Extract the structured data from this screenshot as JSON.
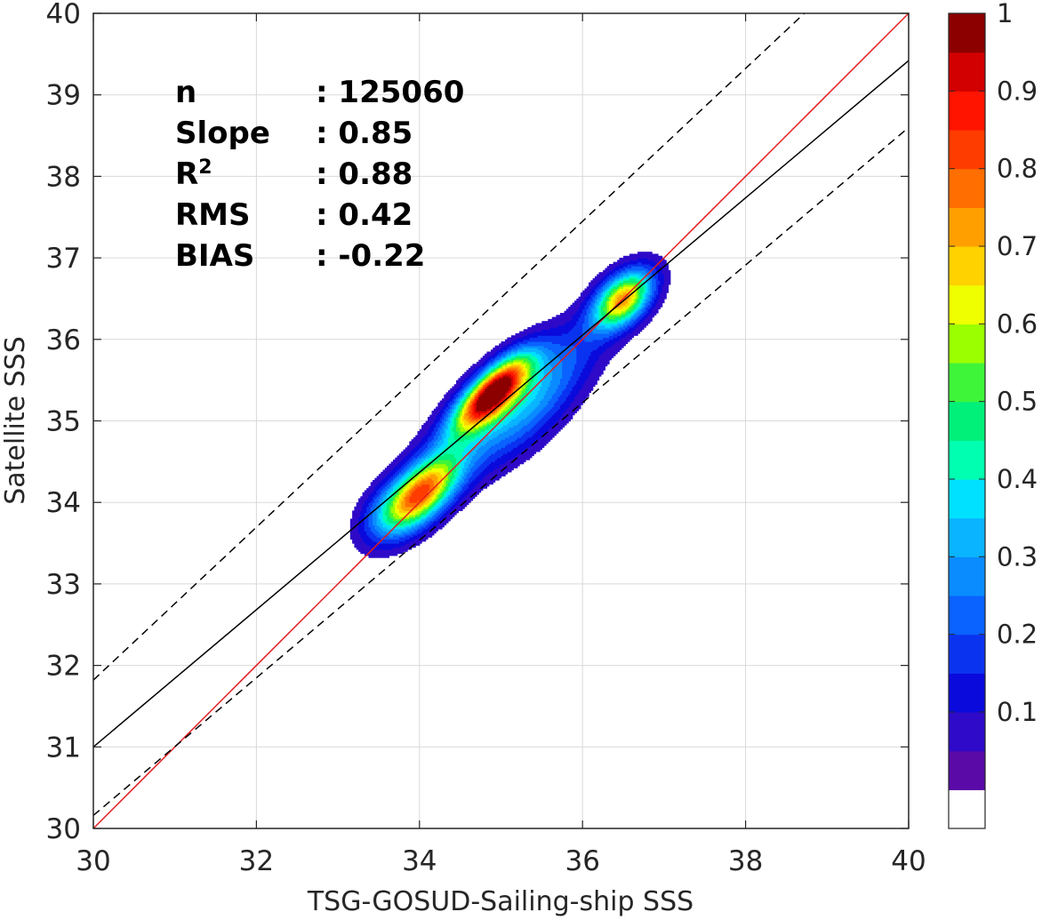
{
  "chart_data": {
    "type": "contour_density_scatter",
    "xlabel": "TSG-GOSUD-Sailing-ship SSS",
    "ylabel": "Satellite SSS",
    "xlim": [
      30,
      40
    ],
    "ylim": [
      30,
      40
    ],
    "xticks": [
      30,
      32,
      34,
      36,
      38,
      40
    ],
    "yticks": [
      30,
      31,
      32,
      33,
      34,
      35,
      36,
      37,
      38,
      39,
      40
    ],
    "grid": true,
    "stats": [
      {
        "label": "n",
        "value": ": 125060"
      },
      {
        "label": "Slope",
        "value": ": 0.85"
      },
      {
        "label": "R",
        "sup": "2",
        "value": ": 0.88"
      },
      {
        "label": "RMS",
        "value": ": 0.42"
      },
      {
        "label": "BIAS",
        "value": ": -0.22"
      }
    ],
    "lines": [
      {
        "kind": "one_to_one",
        "color": "#e31a1c",
        "style": "solid",
        "points": [
          [
            30,
            30
          ],
          [
            40,
            40
          ]
        ]
      },
      {
        "kind": "regression_fit",
        "color": "#000000",
        "style": "solid",
        "points": [
          [
            30,
            31.0
          ],
          [
            40,
            39.42
          ]
        ]
      },
      {
        "kind": "upper_bound",
        "color": "#000000",
        "style": "dashed",
        "points": [
          [
            30,
            31.82
          ],
          [
            40,
            41.2
          ]
        ]
      },
      {
        "kind": "lower_bound",
        "color": "#000000",
        "style": "dashed",
        "points": [
          [
            30,
            30.16
          ],
          [
            40,
            38.6
          ]
        ]
      }
    ],
    "density_peaks": [
      {
        "x": 34.0,
        "y": 34.1,
        "peak": 0.75
      },
      {
        "x": 34.9,
        "y": 35.35,
        "peak": 0.98
      },
      {
        "x": 36.5,
        "y": 36.5,
        "peak": 0.68
      }
    ],
    "colorbar": {
      "ticks": [
        "0.1",
        "0.2",
        "0.3",
        "0.4",
        "0.5",
        "0.6",
        "0.7",
        "0.8",
        "0.9",
        "1"
      ],
      "range": [
        0,
        1
      ],
      "levels": 20,
      "colors": [
        "#ffffff",
        "#5a0aa6",
        "#2f0ac8",
        "#0a0adc",
        "#0a33f0",
        "#0a62ff",
        "#0a8cff",
        "#0ab4ff",
        "#00e1ff",
        "#00ffb0",
        "#00f07a",
        "#3ff53a",
        "#9cff00",
        "#f0ff00",
        "#ffd200",
        "#ffa000",
        "#ff6e00",
        "#ff3c00",
        "#ff1400",
        "#d20000",
        "#8c0000"
      ]
    }
  }
}
